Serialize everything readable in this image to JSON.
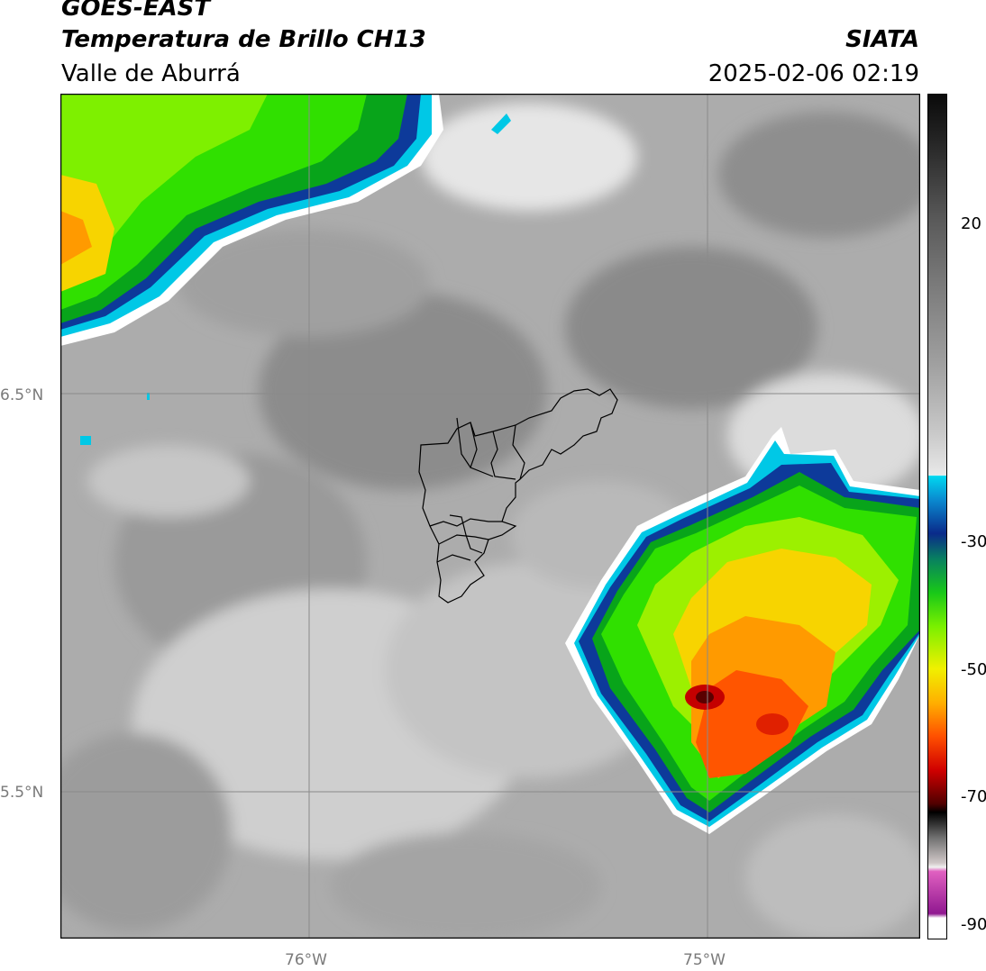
{
  "header": {
    "satellite": "GOES-EAST",
    "product": "Temperatura de Brillo CH13",
    "region": "Valle de Aburrá",
    "organization": "SIATA",
    "timestamp": "2025-02-06 02:19"
  },
  "map": {
    "lat_labels": [
      "6.5°N",
      "5.5°N"
    ],
    "lon_labels": [
      "76°W",
      "75°W"
    ]
  },
  "colorbar": {
    "ticks": [
      "20",
      "-30",
      "-50",
      "-70",
      "-90"
    ],
    "range": [
      -90,
      40
    ]
  }
}
